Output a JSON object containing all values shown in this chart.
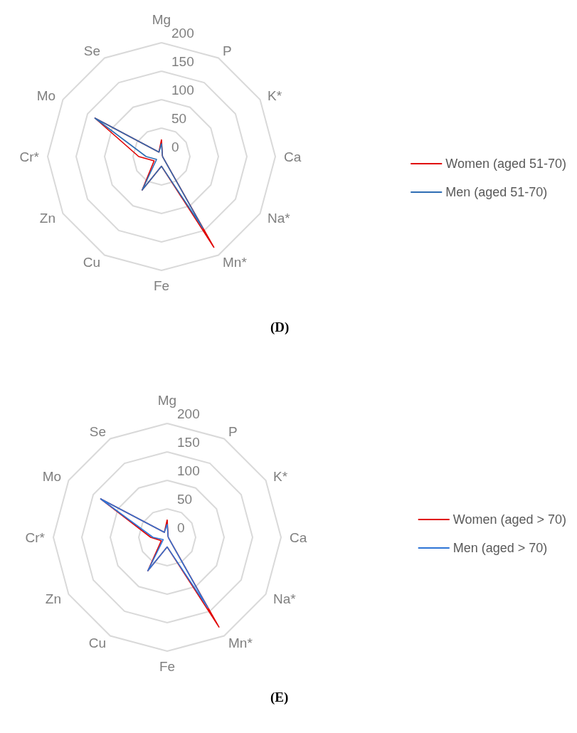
{
  "chart_data": [
    {
      "type": "radar",
      "categories": [
        "Mg",
        "P",
        "K*",
        "Ca",
        "Na*",
        "Mn*",
        "Fe",
        "Cu",
        "Zn",
        "Cr*",
        "Mo",
        "Se"
      ],
      "series": [
        {
          "name": "Women (aged 51-70)",
          "color": "#e00000",
          "values": [
            30,
            3,
            2,
            2,
            3,
            184,
            17,
            68,
            15,
            40,
            135,
            9
          ]
        },
        {
          "name": "Men (aged 51-70)",
          "color": "#2e6db4",
          "values": [
            23,
            3,
            2,
            2,
            3,
            145,
            17,
            68,
            10,
            27,
            135,
            9
          ]
        }
      ],
      "ylim": [
        0,
        200
      ],
      "yticks": [
        0,
        50,
        100,
        150,
        200
      ],
      "grid": true,
      "legend": "right",
      "marker": "none",
      "annotations": [
        "(D)"
      ]
    },
    {
      "type": "radar",
      "categories": [
        "Mg",
        "P",
        "K*",
        "Ca",
        "Na*",
        "Mn*",
        "Fe",
        "Cu",
        "Zn",
        "Cr*",
        "Mo",
        "Se"
      ],
      "series": [
        {
          "name": "Women (aged > 70)",
          "color": "#e00000",
          "values": [
            31,
            3,
            2,
            2,
            3,
            182,
            17,
            68,
            12,
            29,
            135,
            10
          ]
        },
        {
          "name": "Men (aged > 70)",
          "color": "#2e75d6",
          "values": [
            23,
            3,
            2,
            2,
            3,
            143,
            17,
            68,
            8,
            25,
            135,
            10
          ]
        }
      ],
      "ylim": [
        0,
        200
      ],
      "yticks": [
        0,
        50,
        100,
        150,
        200
      ],
      "grid": true,
      "legend": "right",
      "marker": "none",
      "annotations": [
        "(E)"
      ]
    }
  ]
}
